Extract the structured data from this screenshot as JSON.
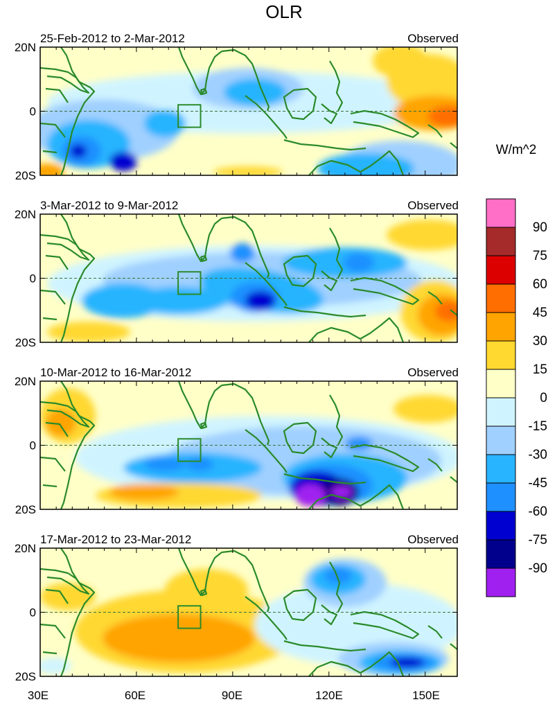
{
  "title": "OLR",
  "units": "W/m^2",
  "panels": [
    {
      "period": "25-Feb-2012 to 2-Mar-2012",
      "label": "Observed"
    },
    {
      "period": "3-Mar-2012 to 9-Mar-2012",
      "label": "Observed"
    },
    {
      "period": "10-Mar-2012 to 16-Mar-2012",
      "label": "Observed"
    },
    {
      "period": "17-Mar-2012 to 23-Mar-2012",
      "label": "Observed"
    }
  ],
  "lat_ticks": [
    "20N",
    "0",
    "20S"
  ],
  "lon_ticks": [
    "30E",
    "60E",
    "90E",
    "120E",
    "150E"
  ],
  "colorbar": {
    "labels": [
      "90",
      "75",
      "60",
      "45",
      "30",
      "15",
      "0",
      "-15",
      "-30",
      "-45",
      "-60",
      "-75",
      "-90"
    ],
    "colors_top_to_bottom": [
      "#ff6ec7",
      "#a52a2a",
      "#dd0000",
      "#ff6e00",
      "#ffa400",
      "#ffd830",
      "#ffffc8",
      "#d0f4ff",
      "#a0d0ff",
      "#28b4ff",
      "#1e90ff",
      "#0000d0",
      "#00008c",
      "#a020f0"
    ]
  },
  "chart_data": {
    "type": "heatmap",
    "variable": "OLR anomaly",
    "units": "W/m^2",
    "lon_range": [
      30,
      160
    ],
    "lat_range": [
      -20,
      20
    ],
    "levels": [
      -90,
      -75,
      -60,
      -45,
      -30,
      -15,
      0,
      15,
      30,
      45,
      60,
      75,
      90
    ],
    "lat_ticks": [
      "20N",
      "0",
      "20S"
    ],
    "lon_ticks": [
      "30E",
      "60E",
      "90E",
      "120E",
      "150E"
    ],
    "reference_box_deg": {
      "lon": [
        73,
        80
      ],
      "lat": [
        -5,
        2
      ]
    }
  }
}
